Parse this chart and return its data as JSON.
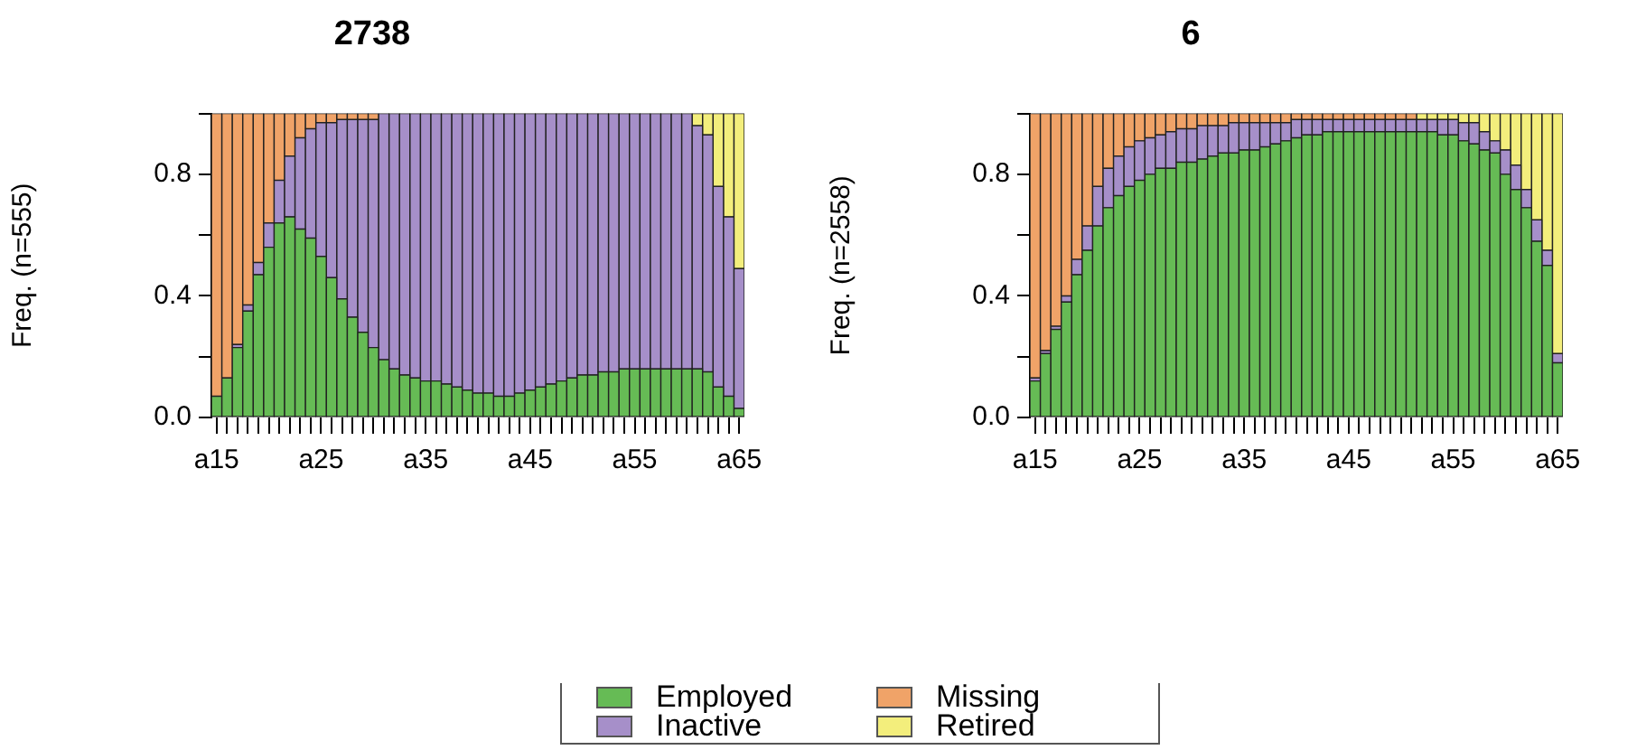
{
  "chart_data": [
    {
      "type": "bar",
      "title": "2738",
      "ylabel": "Freq. (n=555)",
      "stacked": true,
      "legend": "bottom",
      "grid": false,
      "categories": [
        "a15",
        null,
        null,
        null,
        null,
        null,
        null,
        null,
        null,
        null,
        "a25",
        null,
        null,
        null,
        null,
        null,
        null,
        null,
        null,
        null,
        "a35",
        null,
        null,
        null,
        null,
        null,
        null,
        null,
        null,
        null,
        "a45",
        null,
        null,
        null,
        null,
        null,
        null,
        null,
        null,
        null,
        "a55",
        null,
        null,
        null,
        null,
        null,
        null,
        null,
        null,
        null,
        "a65"
      ],
      "ylim": [
        0,
        1
      ],
      "yticks": [
        {
          "value": 0,
          "label": "0.0"
        },
        {
          "value": 0.2,
          "label": null
        },
        {
          "value": 0.4,
          "label": "0.4"
        },
        {
          "value": 0.6,
          "label": null
        },
        {
          "value": 0.8,
          "label": "0.8"
        },
        {
          "value": 1,
          "label": null
        }
      ],
      "series": [
        {
          "name": "Employed",
          "color": "#66bb55",
          "values": [
            0.07,
            0.13,
            0.23,
            0.35,
            0.47,
            0.56,
            0.64,
            0.66,
            0.62,
            0.59,
            0.53,
            0.46,
            0.39,
            0.33,
            0.28,
            0.23,
            0.19,
            0.16,
            0.14,
            0.13,
            0.12,
            0.12,
            0.11,
            0.1,
            0.09,
            0.08,
            0.08,
            0.07,
            0.07,
            0.08,
            0.09,
            0.1,
            0.11,
            0.12,
            0.13,
            0.14,
            0.14,
            0.15,
            0.15,
            0.16,
            0.16,
            0.16,
            0.16,
            0.16,
            0.16,
            0.16,
            0.16,
            0.15,
            0.1,
            0.07,
            0.03
          ]
        },
        {
          "name": "Inactive",
          "color": "#a68fc9",
          "values": [
            0,
            0,
            0.01,
            0.02,
            0.04,
            0.08,
            0.14,
            0.2,
            0.3,
            0.36,
            0.44,
            0.51,
            0.59,
            0.65,
            0.7,
            0.75,
            0.81,
            0.84,
            0.86,
            0.87,
            0.88,
            0.88,
            0.89,
            0.9,
            0.91,
            0.92,
            0.92,
            0.93,
            0.93,
            0.92,
            0.91,
            0.9,
            0.89,
            0.88,
            0.87,
            0.86,
            0.86,
            0.85,
            0.85,
            0.84,
            0.84,
            0.84,
            0.84,
            0.84,
            0.84,
            0.84,
            0.8,
            0.78,
            0.66,
            0.59,
            0.46
          ]
        },
        {
          "name": "Missing",
          "color": "#f0a368",
          "values": [
            0.93,
            0.87,
            0.76,
            0.63,
            0.49,
            0.36,
            0.22,
            0.14,
            0.08,
            0.05,
            0.03,
            0.03,
            0.02,
            0.02,
            0.02,
            0.02,
            0,
            0,
            0,
            0,
            0,
            0,
            0,
            0,
            0,
            0,
            0,
            0,
            0,
            0,
            0,
            0,
            0,
            0,
            0,
            0,
            0,
            0,
            0,
            0,
            0,
            0,
            0,
            0,
            0,
            0,
            0,
            0,
            0,
            0,
            0
          ]
        },
        {
          "name": "Retired",
          "color": "#f3ee7c",
          "values": [
            0,
            0,
            0,
            0,
            0,
            0,
            0,
            0,
            0,
            0,
            0,
            0,
            0,
            0,
            0,
            0,
            0,
            0,
            0,
            0,
            0,
            0,
            0,
            0,
            0,
            0,
            0,
            0,
            0,
            0,
            0,
            0,
            0,
            0,
            0,
            0,
            0,
            0,
            0,
            0,
            0,
            0,
            0,
            0,
            0,
            0,
            0.04,
            0.07,
            0.24,
            0.34,
            0.51
          ]
        }
      ]
    },
    {
      "type": "bar",
      "title": "6",
      "ylabel": "Freq. (n=2558)",
      "stacked": true,
      "grid": false,
      "categories": [
        "a15",
        null,
        null,
        null,
        null,
        null,
        null,
        null,
        null,
        null,
        "a25",
        null,
        null,
        null,
        null,
        null,
        null,
        null,
        null,
        null,
        "a35",
        null,
        null,
        null,
        null,
        null,
        null,
        null,
        null,
        null,
        "a45",
        null,
        null,
        null,
        null,
        null,
        null,
        null,
        null,
        null,
        "a55",
        null,
        null,
        null,
        null,
        null,
        null,
        null,
        null,
        null,
        "a65"
      ],
      "ylim": [
        0,
        1
      ],
      "yticks": [
        {
          "value": 0,
          "label": "0.0"
        },
        {
          "value": 0.2,
          "label": null
        },
        {
          "value": 0.4,
          "label": "0.4"
        },
        {
          "value": 0.6,
          "label": null
        },
        {
          "value": 0.8,
          "label": "0.8"
        },
        {
          "value": 1,
          "label": null
        }
      ],
      "series": [
        {
          "color": "#66bb55",
          "values": [
            0.12,
            0.21,
            0.29,
            0.38,
            0.47,
            0.55,
            0.63,
            0.69,
            0.73,
            0.76,
            0.78,
            0.8,
            0.82,
            0.82,
            0.84,
            0.84,
            0.85,
            0.86,
            0.87,
            0.87,
            0.88,
            0.88,
            0.89,
            0.9,
            0.91,
            0.92,
            0.93,
            0.93,
            0.94,
            0.94,
            0.94,
            0.94,
            0.94,
            0.94,
            0.94,
            0.94,
            0.94,
            0.94,
            0.94,
            0.93,
            0.93,
            0.91,
            0.9,
            0.88,
            0.87,
            0.8,
            0.75,
            0.69,
            0.58,
            0.5,
            0.18
          ]
        },
        {
          "color": "#a68fc9",
          "values": [
            0.01,
            0.01,
            0.01,
            0.02,
            0.05,
            0.08,
            0.13,
            0.13,
            0.13,
            0.13,
            0.13,
            0.12,
            0.11,
            0.12,
            0.11,
            0.11,
            0.11,
            0.1,
            0.09,
            0.1,
            0.09,
            0.09,
            0.08,
            0.07,
            0.06,
            0.06,
            0.05,
            0.05,
            0.04,
            0.04,
            0.04,
            0.04,
            0.04,
            0.04,
            0.04,
            0.04,
            0.04,
            0.04,
            0.04,
            0.05,
            0.05,
            0.06,
            0.07,
            0.06,
            0.04,
            0.08,
            0.08,
            0.06,
            0.07,
            0.05,
            0.03
          ]
        },
        {
          "color": "#f0a368",
          "values": [
            0.87,
            0.78,
            0.7,
            0.6,
            0.48,
            0.37,
            0.24,
            0.18,
            0.14,
            0.11,
            0.09,
            0.08,
            0.07,
            0.06,
            0.05,
            0.05,
            0.04,
            0.04,
            0.04,
            0.03,
            0.03,
            0.03,
            0.03,
            0.03,
            0.03,
            0.02,
            0.02,
            0.02,
            0.02,
            0.02,
            0.02,
            0.02,
            0.02,
            0.02,
            0.02,
            0.02,
            0.02,
            0,
            0,
            0,
            0,
            0,
            0,
            0,
            0,
            0,
            0,
            0,
            0,
            0,
            0
          ]
        },
        {
          "color": "#f3ee7c",
          "values": [
            0,
            0,
            0,
            0,
            0,
            0,
            0,
            0,
            0,
            0,
            0,
            0,
            0,
            0,
            0,
            0,
            0,
            0,
            0,
            0,
            0,
            0,
            0,
            0,
            0,
            0,
            0,
            0,
            0,
            0,
            0,
            0,
            0,
            0,
            0,
            0,
            0,
            0.02,
            0.02,
            0.02,
            0.02,
            0.03,
            0.03,
            0.06,
            0.09,
            0.12,
            0.17,
            0.25,
            0.35,
            0.45,
            0.79
          ]
        }
      ]
    }
  ]
}
